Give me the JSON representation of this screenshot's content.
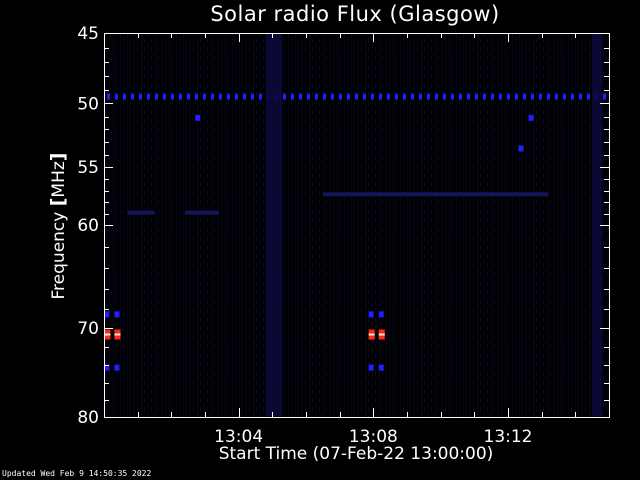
{
  "title": "Solar radio Flux (Glasgow)",
  "updated": "Updated Wed Feb  9 14:50:35 2022",
  "colors": {
    "background": "#000000",
    "axis": "#ffffff",
    "low_intensity": "#0a0a3a",
    "medium_intensity": "#2020ff",
    "high_intensity": "#ff2a10",
    "peak_intensity": "#ffe0d0"
  },
  "chart_data": {
    "type": "heatmap",
    "title": "Solar radio Flux (Glasgow)",
    "xlabel": "Start Time (07-Feb-22 13:00:00)",
    "ylabel": "Frequency [MHz]",
    "xunit": "minutes after 13:00",
    "xlim": [
      0,
      15
    ],
    "ylim": [
      45,
      80
    ],
    "yscale": "log",
    "xticks": [
      {
        "value": 4,
        "label": "13:04"
      },
      {
        "value": 8,
        "label": "13:08"
      },
      {
        "value": 12,
        "label": "13:12"
      }
    ],
    "yticks": [
      {
        "value": 45,
        "label": "45"
      },
      {
        "value": 50,
        "label": "50"
      },
      {
        "value": 55,
        "label": "55"
      },
      {
        "value": 60,
        "label": "60"
      },
      {
        "value": 70,
        "label": "70"
      },
      {
        "value": 80,
        "label": "80"
      }
    ],
    "features": [
      {
        "kind": "band",
        "freq": 49.5,
        "x_from": 0,
        "x_to": 15,
        "intensity": "medium"
      },
      {
        "kind": "band",
        "freq": 57.3,
        "x_from": 6.5,
        "x_to": 13.2,
        "intensity": "low"
      },
      {
        "kind": "band",
        "freq": 58.9,
        "x_from": 0.7,
        "x_to": 1.5,
        "intensity": "low"
      },
      {
        "kind": "band",
        "freq": 58.9,
        "x_from": 2.4,
        "x_to": 3.4,
        "intensity": "low"
      },
      {
        "kind": "vertical",
        "x_from": 4.8,
        "x_to": 5.3,
        "intensity": "low"
      },
      {
        "kind": "vertical",
        "x_from": 14.5,
        "x_to": 14.8,
        "intensity": "low"
      },
      {
        "kind": "point",
        "x": 2.8,
        "freq": 51.1,
        "intensity": "medium"
      },
      {
        "kind": "point",
        "x": 12.4,
        "freq": 53.5,
        "intensity": "medium"
      },
      {
        "kind": "point",
        "x": 12.7,
        "freq": 51.1,
        "intensity": "medium"
      },
      {
        "kind": "point",
        "x": 0.1,
        "freq": 68.6,
        "intensity": "medium"
      },
      {
        "kind": "point",
        "x": 0.4,
        "freq": 68.6,
        "intensity": "medium"
      },
      {
        "kind": "point",
        "x": 0.1,
        "freq": 70.7,
        "intensity": "high"
      },
      {
        "kind": "point",
        "x": 0.4,
        "freq": 70.7,
        "intensity": "high"
      },
      {
        "kind": "point",
        "x": 0.1,
        "freq": 74.3,
        "intensity": "medium"
      },
      {
        "kind": "point",
        "x": 0.4,
        "freq": 74.3,
        "intensity": "medium"
      },
      {
        "kind": "point",
        "x": 7.95,
        "freq": 68.6,
        "intensity": "medium"
      },
      {
        "kind": "point",
        "x": 8.25,
        "freq": 68.6,
        "intensity": "medium"
      },
      {
        "kind": "point",
        "x": 7.95,
        "freq": 70.7,
        "intensity": "high"
      },
      {
        "kind": "point",
        "x": 8.25,
        "freq": 70.7,
        "intensity": "high"
      },
      {
        "kind": "point",
        "x": 7.95,
        "freq": 74.3,
        "intensity": "medium"
      },
      {
        "kind": "point",
        "x": 8.25,
        "freq": 74.3,
        "intensity": "medium"
      }
    ]
  }
}
